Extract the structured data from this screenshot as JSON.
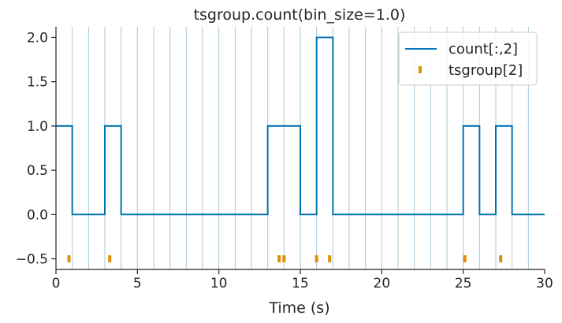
{
  "chart_data": {
    "type": "line",
    "title": "tsgroup.count(bin_size=1.0)",
    "xlabel": "Time (s)",
    "ylabel": "",
    "xlim": [
      0,
      30
    ],
    "ylim": [
      -0.62,
      2.12
    ],
    "xticks": [
      0,
      5,
      10,
      15,
      20,
      25,
      30
    ],
    "xtick_labels": [
      "0",
      "5",
      "10",
      "15",
      "20",
      "25",
      "30"
    ],
    "yticks": [
      -0.5,
      0.0,
      0.5,
      1.0,
      1.5,
      2.0
    ],
    "ytick_labels": [
      "−0.5",
      "0.0",
      "0.5",
      "1.0",
      "1.5",
      "2.0"
    ],
    "bin_edges": [
      1,
      2,
      3,
      4,
      5,
      6,
      7,
      8,
      9,
      10,
      11,
      12,
      13,
      14,
      15,
      16,
      17,
      18,
      19,
      20,
      21,
      22,
      23,
      24,
      25,
      26,
      27,
      28,
      29
    ],
    "legend_position": "top-right",
    "grid": false,
    "series": [
      {
        "name": "count[:,2]",
        "kind": "step",
        "color": "#0173b2",
        "x": [
          0.5,
          1.5,
          2.5,
          3.5,
          4.5,
          5.5,
          6.5,
          7.5,
          8.5,
          9.5,
          10.5,
          11.5,
          12.5,
          13.5,
          14.5,
          15.5,
          16.5,
          17.5,
          18.5,
          19.5,
          20.5,
          21.5,
          22.5,
          23.5,
          24.5,
          25.5,
          26.5,
          27.5,
          28.5,
          29.5
        ],
        "y": [
          1,
          0,
          0,
          1,
          0,
          0,
          0,
          0,
          0,
          0,
          0,
          0,
          0,
          1,
          1,
          0,
          2,
          0,
          0,
          0,
          0,
          0,
          0,
          0,
          0,
          1,
          0,
          1,
          0,
          0
        ]
      },
      {
        "name": "tsgroup[2]",
        "kind": "event",
        "color": "#de8f05",
        "x": [
          0.8,
          3.3,
          13.7,
          14.0,
          16.0,
          16.8,
          25.1,
          27.3
        ],
        "y": [
          -0.5,
          -0.5,
          -0.5,
          -0.5,
          -0.5,
          -0.5,
          -0.5,
          -0.5
        ]
      }
    ]
  },
  "colors": {
    "bin_lines": "#a6c8dd",
    "axes": "#262626",
    "legend_border": "#cccccc"
  }
}
